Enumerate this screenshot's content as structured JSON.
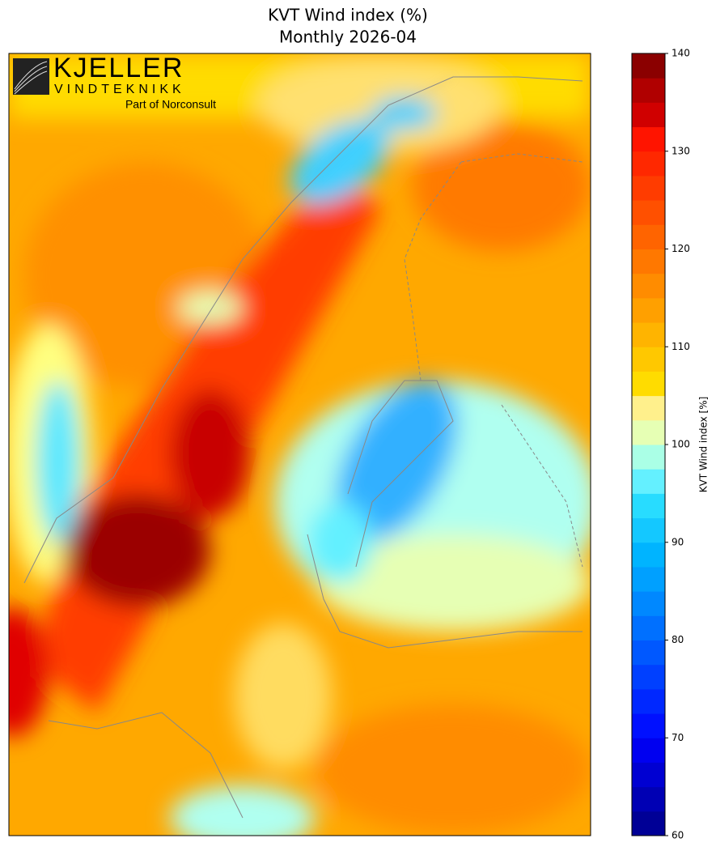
{
  "chart_data": {
    "type": "map",
    "title": "KVT Wind index (%)",
    "subtitle": "Monthly 2026-04",
    "colorbar": {
      "label": "KVT Wind index [%]",
      "lim": [
        60,
        140
      ],
      "ticks": [
        60,
        70,
        80,
        90,
        100,
        110,
        120,
        130,
        140
      ],
      "colors": [
        "#000096",
        "#0000b4",
        "#0000d2",
        "#0000f0",
        "#0010ff",
        "#0028ff",
        "#0040ff",
        "#0058ff",
        "#0070ff",
        "#0088ff",
        "#00a0ff",
        "#00b4ff",
        "#14c8ff",
        "#28dcff",
        "#64f0ff",
        "#aaffe6",
        "#e6ffb4",
        "#fff08c",
        "#ffdc00",
        "#ffc800",
        "#ffb400",
        "#ffa000",
        "#ff8c00",
        "#ff7800",
        "#ff6400",
        "#ff5000",
        "#ff3c00",
        "#ff2800",
        "#ff1400",
        "#d00000",
        "#b00000",
        "#8b0000"
      ]
    }
  },
  "logo": {
    "name": "KJELLER",
    "tagline": "VINDTEKNIKK",
    "parent": "Part of Norconsult"
  }
}
